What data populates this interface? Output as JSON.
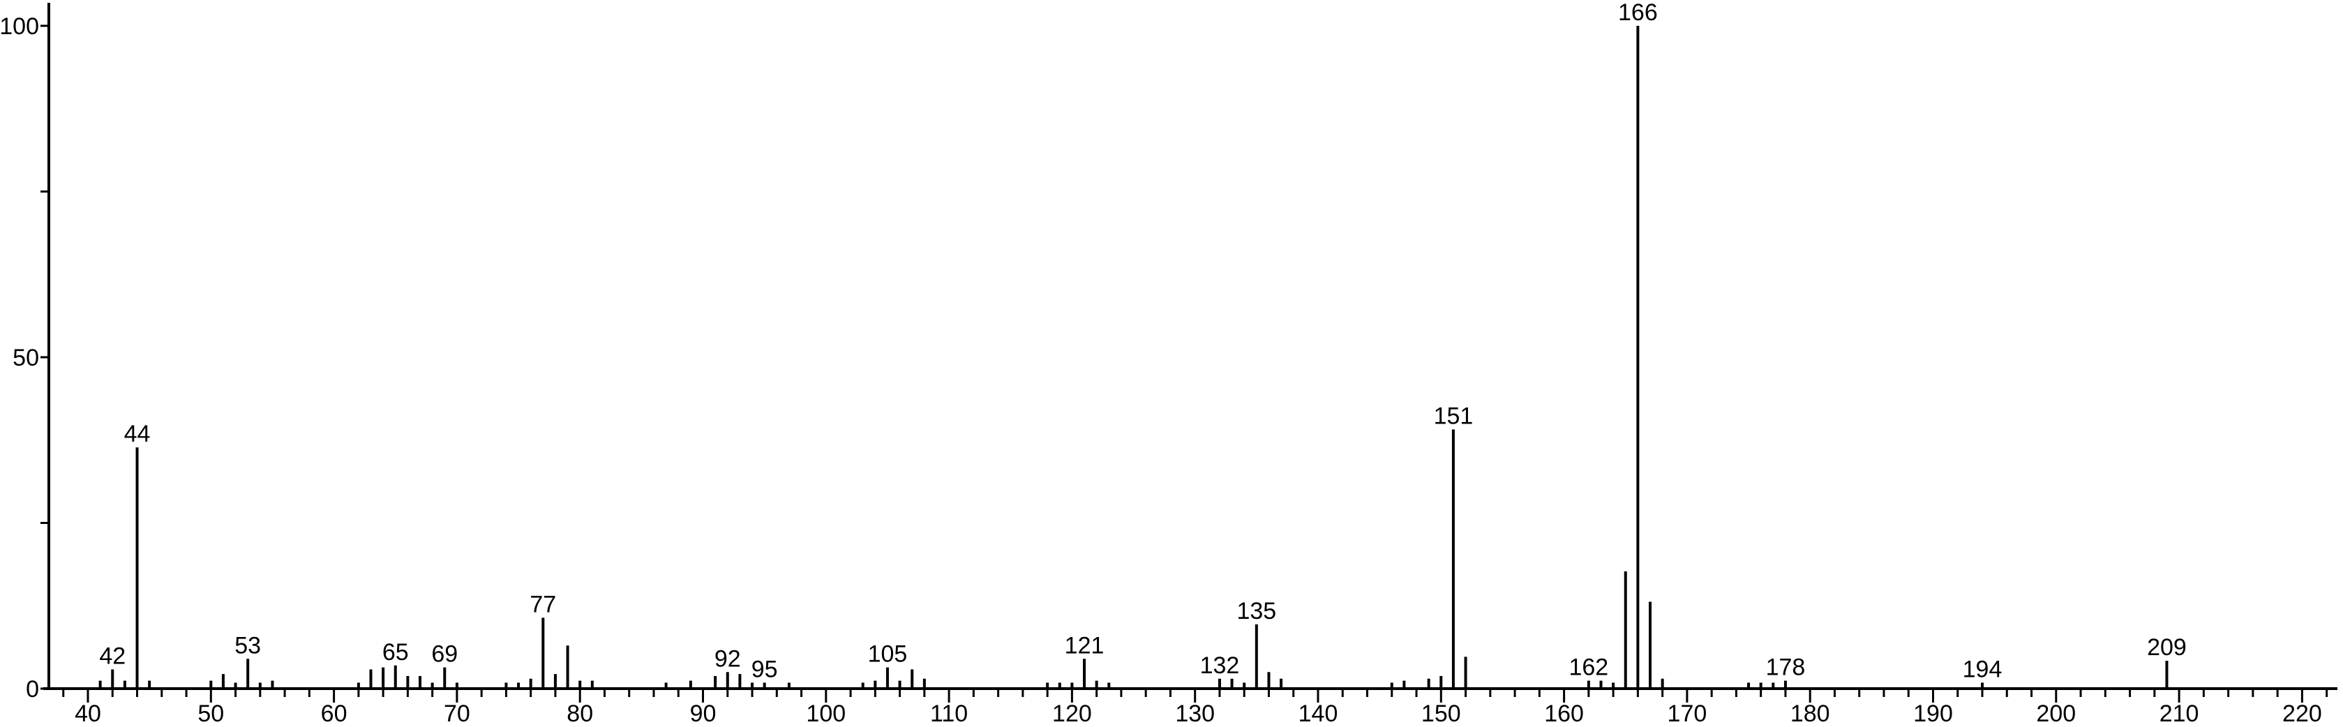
{
  "chart_data": {
    "type": "bar",
    "subtype": "mass-spectrum-stick",
    "title": "",
    "xlabel": "",
    "ylabel": "",
    "xlim": [
      37.5,
      222.5
    ],
    "ylim": [
      0,
      100
    ],
    "grid": false,
    "legend": "none",
    "colors": {
      "bars": "#000000",
      "axis": "#000000",
      "background": "#ffffff"
    },
    "y_ticks": [
      0,
      25,
      50,
      75,
      100
    ],
    "y_tick_labels": [
      "0",
      "50",
      "100"
    ],
    "x_tick_labels": [
      "40",
      "50",
      "60",
      "70",
      "80",
      "90",
      "100",
      "110",
      "120",
      "130",
      "140",
      "150",
      "160",
      "170",
      "180",
      "190",
      "200",
      "210",
      "220"
    ],
    "peaks": [
      {
        "mz": 41,
        "intensity": 1.2
      },
      {
        "mz": 42,
        "intensity": 2.9,
        "label": "42"
      },
      {
        "mz": 43,
        "intensity": 1.2
      },
      {
        "mz": 44,
        "intensity": 36.4,
        "label": "44"
      },
      {
        "mz": 45,
        "intensity": 1.2
      },
      {
        "mz": 50,
        "intensity": 1.2
      },
      {
        "mz": 51,
        "intensity": 2.2
      },
      {
        "mz": 52,
        "intensity": 0.9
      },
      {
        "mz": 53,
        "intensity": 4.5,
        "label": "53"
      },
      {
        "mz": 54,
        "intensity": 0.9
      },
      {
        "mz": 55,
        "intensity": 1.2
      },
      {
        "mz": 62,
        "intensity": 0.9
      },
      {
        "mz": 63,
        "intensity": 2.9
      },
      {
        "mz": 64,
        "intensity": 3.2
      },
      {
        "mz": 65,
        "intensity": 3.5,
        "label": "65"
      },
      {
        "mz": 66,
        "intensity": 1.9
      },
      {
        "mz": 67,
        "intensity": 1.9
      },
      {
        "mz": 68,
        "intensity": 0.9
      },
      {
        "mz": 69,
        "intensity": 3.2,
        "label": "69"
      },
      {
        "mz": 70,
        "intensity": 0.9
      },
      {
        "mz": 74,
        "intensity": 0.9
      },
      {
        "mz": 75,
        "intensity": 0.9
      },
      {
        "mz": 76,
        "intensity": 1.5
      },
      {
        "mz": 77,
        "intensity": 10.7,
        "label": "77"
      },
      {
        "mz": 78,
        "intensity": 2.2
      },
      {
        "mz": 79,
        "intensity": 6.5
      },
      {
        "mz": 80,
        "intensity": 1.2
      },
      {
        "mz": 81,
        "intensity": 1.2
      },
      {
        "mz": 87,
        "intensity": 0.9
      },
      {
        "mz": 89,
        "intensity": 1.2
      },
      {
        "mz": 91,
        "intensity": 1.9
      },
      {
        "mz": 92,
        "intensity": 2.5,
        "label": "92"
      },
      {
        "mz": 93,
        "intensity": 2.2
      },
      {
        "mz": 94,
        "intensity": 0.9
      },
      {
        "mz": 95,
        "intensity": 0.9,
        "label": "95"
      },
      {
        "mz": 97,
        "intensity": 0.9
      },
      {
        "mz": 103,
        "intensity": 0.9
      },
      {
        "mz": 104,
        "intensity": 1.2
      },
      {
        "mz": 105,
        "intensity": 3.2,
        "label": "105"
      },
      {
        "mz": 106,
        "intensity": 1.2
      },
      {
        "mz": 107,
        "intensity": 2.9
      },
      {
        "mz": 108,
        "intensity": 1.5
      },
      {
        "mz": 118,
        "intensity": 0.9
      },
      {
        "mz": 119,
        "intensity": 0.9
      },
      {
        "mz": 120,
        "intensity": 0.9
      },
      {
        "mz": 121,
        "intensity": 4.5,
        "label": "121"
      },
      {
        "mz": 122,
        "intensity": 1.2
      },
      {
        "mz": 123,
        "intensity": 0.9
      },
      {
        "mz": 132,
        "intensity": 1.5,
        "label": "132"
      },
      {
        "mz": 133,
        "intensity": 1.5
      },
      {
        "mz": 134,
        "intensity": 0.9
      },
      {
        "mz": 135,
        "intensity": 9.7,
        "label": "135"
      },
      {
        "mz": 136,
        "intensity": 2.5
      },
      {
        "mz": 137,
        "intensity": 1.5
      },
      {
        "mz": 146,
        "intensity": 0.9
      },
      {
        "mz": 147,
        "intensity": 1.2
      },
      {
        "mz": 149,
        "intensity": 1.5
      },
      {
        "mz": 150,
        "intensity": 1.9
      },
      {
        "mz": 151,
        "intensity": 39.1,
        "label": "151"
      },
      {
        "mz": 152,
        "intensity": 4.8
      },
      {
        "mz": 162,
        "intensity": 1.2,
        "label": "162"
      },
      {
        "mz": 163,
        "intensity": 1.2
      },
      {
        "mz": 164,
        "intensity": 0.9
      },
      {
        "mz": 165,
        "intensity": 17.7
      },
      {
        "mz": 166,
        "intensity": 100,
        "label": "166"
      },
      {
        "mz": 167,
        "intensity": 13.1
      },
      {
        "mz": 168,
        "intensity": 1.5
      },
      {
        "mz": 175,
        "intensity": 0.9
      },
      {
        "mz": 176,
        "intensity": 0.9
      },
      {
        "mz": 177,
        "intensity": 0.9
      },
      {
        "mz": 178,
        "intensity": 1.2,
        "label": "178"
      },
      {
        "mz": 194,
        "intensity": 0.9,
        "label": "194"
      },
      {
        "mz": 209,
        "intensity": 4.2,
        "label": "209"
      }
    ]
  }
}
